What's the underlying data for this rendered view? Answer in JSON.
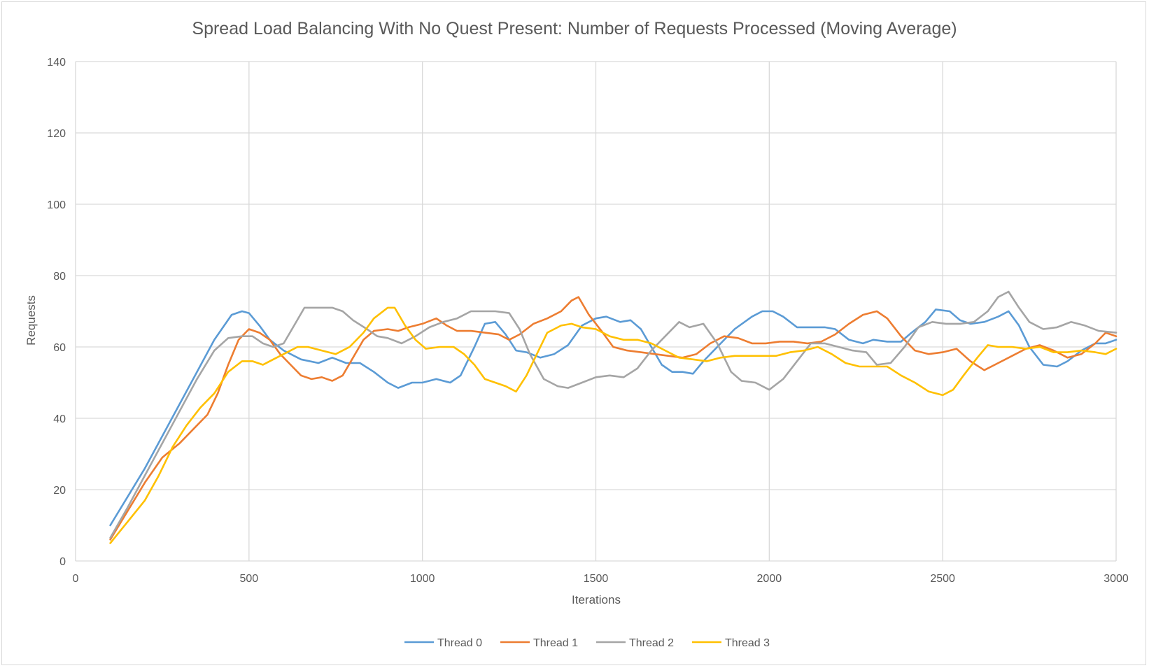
{
  "chart_data": {
    "type": "line",
    "title": "Spread Load Balancing With No Quest Present: Number of Requests Processed (Moving Average)",
    "xlabel": "Iterations",
    "ylabel": "Requests",
    "xlim": [
      0,
      3000
    ],
    "ylim": [
      0,
      140
    ],
    "xticks": [
      0,
      500,
      1000,
      1500,
      2000,
      2500,
      3000
    ],
    "yticks": [
      0,
      20,
      40,
      60,
      80,
      100,
      120,
      140
    ],
    "grid": true,
    "legend": "bottom",
    "series": [
      {
        "name": "Thread 0",
        "color": "#5b9bd5",
        "points": [
          [
            100,
            10
          ],
          [
            150,
            18
          ],
          [
            200,
            26
          ],
          [
            250,
            35
          ],
          [
            300,
            44
          ],
          [
            350,
            53
          ],
          [
            400,
            62
          ],
          [
            450,
            69
          ],
          [
            480,
            70
          ],
          [
            500,
            69.5
          ],
          [
            530,
            66
          ],
          [
            560,
            62
          ],
          [
            600,
            59
          ],
          [
            650,
            56.5
          ],
          [
            700,
            55.5
          ],
          [
            740,
            57
          ],
          [
            780,
            55.5
          ],
          [
            820,
            55.5
          ],
          [
            860,
            53
          ],
          [
            900,
            50
          ],
          [
            930,
            48.5
          ],
          [
            970,
            50
          ],
          [
            1000,
            50
          ],
          [
            1040,
            51
          ],
          [
            1080,
            50
          ],
          [
            1110,
            52
          ],
          [
            1150,
            60
          ],
          [
            1180,
            66.5
          ],
          [
            1210,
            67
          ],
          [
            1240,
            63.5
          ],
          [
            1270,
            59
          ],
          [
            1300,
            58.5
          ],
          [
            1340,
            57
          ],
          [
            1380,
            58
          ],
          [
            1420,
            60.5
          ],
          [
            1460,
            66
          ],
          [
            1500,
            68
          ],
          [
            1530,
            68.5
          ],
          [
            1570,
            67
          ],
          [
            1600,
            67.5
          ],
          [
            1630,
            65
          ],
          [
            1660,
            60
          ],
          [
            1690,
            55
          ],
          [
            1720,
            53
          ],
          [
            1750,
            53
          ],
          [
            1780,
            52.5
          ],
          [
            1810,
            56
          ],
          [
            1850,
            60
          ],
          [
            1900,
            65
          ],
          [
            1950,
            68.5
          ],
          [
            1980,
            70
          ],
          [
            2010,
            70
          ],
          [
            2040,
            68.5
          ],
          [
            2080,
            65.5
          ],
          [
            2120,
            65.5
          ],
          [
            2160,
            65.5
          ],
          [
            2190,
            65
          ],
          [
            2230,
            62
          ],
          [
            2270,
            61
          ],
          [
            2300,
            62
          ],
          [
            2340,
            61.5
          ],
          [
            2380,
            61.5
          ],
          [
            2410,
            64
          ],
          [
            2450,
            67
          ],
          [
            2480,
            70.5
          ],
          [
            2520,
            70
          ],
          [
            2550,
            67.5
          ],
          [
            2580,
            66.5
          ],
          [
            2620,
            67
          ],
          [
            2660,
            68.5
          ],
          [
            2690,
            70
          ],
          [
            2720,
            66
          ],
          [
            2750,
            60
          ],
          [
            2790,
            55
          ],
          [
            2830,
            54.5
          ],
          [
            2860,
            56
          ],
          [
            2900,
            59
          ],
          [
            2940,
            61
          ],
          [
            2970,
            61
          ],
          [
            3000,
            62
          ]
        ]
      },
      {
        "name": "Thread 1",
        "color": "#ed7d31",
        "points": [
          [
            100,
            6
          ],
          [
            150,
            14
          ],
          [
            200,
            22
          ],
          [
            250,
            29
          ],
          [
            300,
            33
          ],
          [
            340,
            37
          ],
          [
            380,
            41
          ],
          [
            410,
            47
          ],
          [
            440,
            55
          ],
          [
            470,
            62
          ],
          [
            500,
            65
          ],
          [
            530,
            64
          ],
          [
            560,
            62
          ],
          [
            590,
            58
          ],
          [
            620,
            55
          ],
          [
            650,
            52
          ],
          [
            680,
            51
          ],
          [
            710,
            51.5
          ],
          [
            740,
            50.5
          ],
          [
            770,
            52
          ],
          [
            800,
            57
          ],
          [
            830,
            62
          ],
          [
            860,
            64.5
          ],
          [
            900,
            65
          ],
          [
            930,
            64.5
          ],
          [
            960,
            65.5
          ],
          [
            1000,
            66.5
          ],
          [
            1040,
            68
          ],
          [
            1070,
            66
          ],
          [
            1100,
            64.5
          ],
          [
            1140,
            64.5
          ],
          [
            1180,
            64
          ],
          [
            1220,
            63.5
          ],
          [
            1250,
            62
          ],
          [
            1280,
            63.5
          ],
          [
            1320,
            66.5
          ],
          [
            1360,
            68
          ],
          [
            1400,
            70
          ],
          [
            1430,
            73
          ],
          [
            1450,
            74
          ],
          [
            1480,
            69
          ],
          [
            1520,
            64
          ],
          [
            1550,
            60
          ],
          [
            1590,
            59
          ],
          [
            1630,
            58.5
          ],
          [
            1670,
            58
          ],
          [
            1710,
            57.5
          ],
          [
            1750,
            57
          ],
          [
            1790,
            58
          ],
          [
            1830,
            61
          ],
          [
            1870,
            63
          ],
          [
            1910,
            62.5
          ],
          [
            1950,
            61
          ],
          [
            1990,
            61
          ],
          [
            2030,
            61.5
          ],
          [
            2070,
            61.5
          ],
          [
            2110,
            61
          ],
          [
            2150,
            61.5
          ],
          [
            2190,
            63.5
          ],
          [
            2230,
            66.5
          ],
          [
            2270,
            69
          ],
          [
            2310,
            70
          ],
          [
            2340,
            68
          ],
          [
            2380,
            63
          ],
          [
            2420,
            59
          ],
          [
            2460,
            58
          ],
          [
            2500,
            58.5
          ],
          [
            2540,
            59.5
          ],
          [
            2580,
            56
          ],
          [
            2620,
            53.5
          ],
          [
            2660,
            55.5
          ],
          [
            2700,
            57.5
          ],
          [
            2740,
            59.5
          ],
          [
            2780,
            60.5
          ],
          [
            2820,
            59
          ],
          [
            2860,
            57
          ],
          [
            2900,
            58
          ],
          [
            2940,
            61
          ],
          [
            2970,
            64
          ],
          [
            3000,
            63
          ]
        ]
      },
      {
        "name": "Thread 2",
        "color": "#a5a5a5",
        "points": [
          [
            100,
            6.5
          ],
          [
            150,
            15
          ],
          [
            200,
            24
          ],
          [
            250,
            33
          ],
          [
            300,
            42
          ],
          [
            350,
            51
          ],
          [
            400,
            59
          ],
          [
            440,
            62.5
          ],
          [
            480,
            63
          ],
          [
            510,
            63
          ],
          [
            540,
            61
          ],
          [
            570,
            60
          ],
          [
            600,
            61
          ],
          [
            630,
            66
          ],
          [
            660,
            71
          ],
          [
            700,
            71
          ],
          [
            740,
            71
          ],
          [
            770,
            70
          ],
          [
            800,
            67.5
          ],
          [
            840,
            65
          ],
          [
            870,
            63
          ],
          [
            900,
            62.5
          ],
          [
            940,
            61
          ],
          [
            980,
            63
          ],
          [
            1020,
            65.5
          ],
          [
            1060,
            67
          ],
          [
            1100,
            68
          ],
          [
            1140,
            70
          ],
          [
            1180,
            70
          ],
          [
            1210,
            70
          ],
          [
            1250,
            69.5
          ],
          [
            1280,
            65
          ],
          [
            1310,
            58
          ],
          [
            1350,
            51
          ],
          [
            1390,
            49
          ],
          [
            1420,
            48.5
          ],
          [
            1460,
            50
          ],
          [
            1500,
            51.5
          ],
          [
            1540,
            52
          ],
          [
            1580,
            51.5
          ],
          [
            1620,
            54
          ],
          [
            1660,
            59
          ],
          [
            1700,
            63
          ],
          [
            1740,
            67
          ],
          [
            1770,
            65.5
          ],
          [
            1810,
            66.5
          ],
          [
            1850,
            61
          ],
          [
            1890,
            53
          ],
          [
            1920,
            50.5
          ],
          [
            1960,
            50
          ],
          [
            2000,
            48
          ],
          [
            2040,
            51
          ],
          [
            2080,
            56
          ],
          [
            2120,
            61
          ],
          [
            2160,
            61
          ],
          [
            2200,
            60
          ],
          [
            2240,
            59
          ],
          [
            2280,
            58.5
          ],
          [
            2310,
            55
          ],
          [
            2350,
            55.5
          ],
          [
            2390,
            60
          ],
          [
            2430,
            65.5
          ],
          [
            2470,
            67
          ],
          [
            2510,
            66.5
          ],
          [
            2550,
            66.5
          ],
          [
            2590,
            67
          ],
          [
            2630,
            70
          ],
          [
            2660,
            74
          ],
          [
            2690,
            75.5
          ],
          [
            2720,
            71
          ],
          [
            2750,
            67
          ],
          [
            2790,
            65
          ],
          [
            2830,
            65.5
          ],
          [
            2870,
            67
          ],
          [
            2910,
            66
          ],
          [
            2950,
            64.5
          ],
          [
            3000,
            64
          ]
        ]
      },
      {
        "name": "Thread 3",
        "color": "#ffc000",
        "points": [
          [
            100,
            5
          ],
          [
            150,
            11
          ],
          [
            200,
            17
          ],
          [
            240,
            24
          ],
          [
            280,
            32
          ],
          [
            320,
            38
          ],
          [
            360,
            43
          ],
          [
            400,
            47
          ],
          [
            440,
            53
          ],
          [
            480,
            56
          ],
          [
            510,
            56
          ],
          [
            540,
            55
          ],
          [
            570,
            56.5
          ],
          [
            600,
            58
          ],
          [
            640,
            60
          ],
          [
            670,
            60
          ],
          [
            710,
            59
          ],
          [
            750,
            58
          ],
          [
            790,
            60
          ],
          [
            830,
            64
          ],
          [
            860,
            68
          ],
          [
            900,
            71
          ],
          [
            920,
            71
          ],
          [
            950,
            66
          ],
          [
            980,
            62
          ],
          [
            1010,
            59.5
          ],
          [
            1050,
            60
          ],
          [
            1090,
            60
          ],
          [
            1120,
            58
          ],
          [
            1150,
            55
          ],
          [
            1180,
            51
          ],
          [
            1210,
            50
          ],
          [
            1240,
            49
          ],
          [
            1270,
            47.5
          ],
          [
            1300,
            52
          ],
          [
            1330,
            58
          ],
          [
            1360,
            64
          ],
          [
            1400,
            66
          ],
          [
            1430,
            66.5
          ],
          [
            1460,
            65.5
          ],
          [
            1500,
            65
          ],
          [
            1540,
            63
          ],
          [
            1580,
            62
          ],
          [
            1620,
            62
          ],
          [
            1660,
            61
          ],
          [
            1700,
            59
          ],
          [
            1740,
            57
          ],
          [
            1780,
            56.5
          ],
          [
            1820,
            56
          ],
          [
            1860,
            57
          ],
          [
            1900,
            57.5
          ],
          [
            1940,
            57.5
          ],
          [
            1980,
            57.5
          ],
          [
            2020,
            57.5
          ],
          [
            2060,
            58.5
          ],
          [
            2100,
            59
          ],
          [
            2140,
            60
          ],
          [
            2180,
            58
          ],
          [
            2220,
            55.5
          ],
          [
            2260,
            54.5
          ],
          [
            2300,
            54.5
          ],
          [
            2340,
            54.5
          ],
          [
            2380,
            52
          ],
          [
            2420,
            50
          ],
          [
            2460,
            47.5
          ],
          [
            2500,
            46.5
          ],
          [
            2530,
            48
          ],
          [
            2560,
            52
          ],
          [
            2600,
            57
          ],
          [
            2630,
            60.5
          ],
          [
            2660,
            60
          ],
          [
            2700,
            60
          ],
          [
            2740,
            59.5
          ],
          [
            2780,
            60
          ],
          [
            2820,
            58.5
          ],
          [
            2860,
            58.5
          ],
          [
            2900,
            59
          ],
          [
            2940,
            58.5
          ],
          [
            2970,
            58
          ],
          [
            3000,
            59.5
          ]
        ]
      }
    ]
  }
}
